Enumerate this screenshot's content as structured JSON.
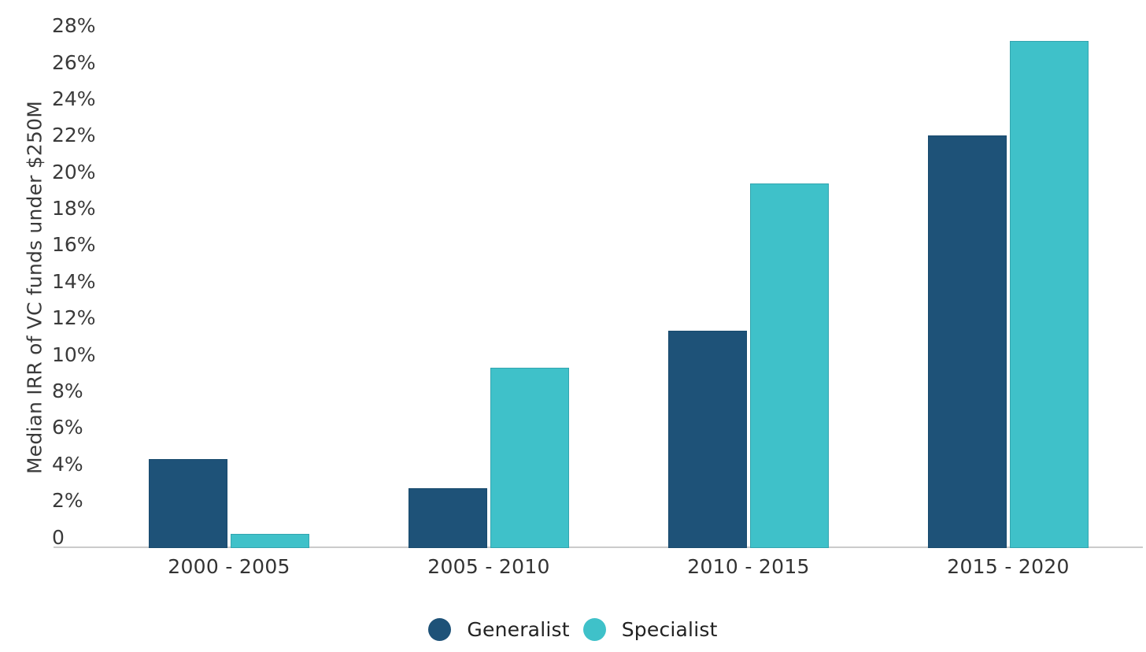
{
  "chart_data": {
    "type": "bar",
    "title": "",
    "xlabel": "",
    "ylabel": "Median IRR of VC funds under $250M",
    "categories": [
      "2000 - 2005",
      "2005 - 2010",
      "2010 - 2015",
      "2015 - 2020"
    ],
    "series": [
      {
        "name": "Generalist",
        "color": "#1E5278",
        "values": [
          4.3,
          2.7,
          11.3,
          22.0
        ]
      },
      {
        "name": "Specialist",
        "color": "#3FC1C9",
        "values": [
          0.2,
          9.3,
          19.4,
          27.2
        ]
      }
    ],
    "y_ticks": [
      "0",
      "2%",
      "4%",
      "6%",
      "8%",
      "10%",
      "12%",
      "14%",
      "16%",
      "18%",
      "20%",
      "22%",
      "24%",
      "26%",
      "28%"
    ],
    "y_tick_values": [
      0,
      2,
      4,
      6,
      8,
      10,
      12,
      14,
      16,
      18,
      20,
      22,
      24,
      26,
      28
    ],
    "ylim": [
      0,
      28
    ],
    "grid": "off",
    "legend_position": "bottom",
    "axis_line_color": "#cbcbcb"
  }
}
